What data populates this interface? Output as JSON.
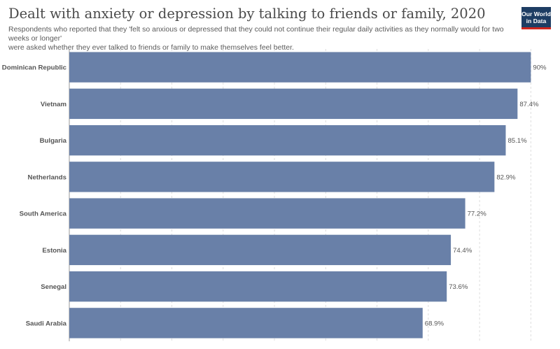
{
  "header": {
    "title": "Dealt with anxiety or depression by talking to friends or family, 2020",
    "subtitle_line1": "Respondents who reported that they 'felt so anxious or depressed that they could not continue their regular daily activities as they normally would for two weeks or longer'",
    "subtitle_line2": "were asked whether they ever talked to friends or family to make themselves feel better."
  },
  "logo": {
    "line1": "Our World",
    "line2": "in Data",
    "colors": {
      "background": "#1d3d63",
      "accent": "#ce261e"
    }
  },
  "chart_data": {
    "type": "bar",
    "orientation": "horizontal",
    "title": "Dealt with anxiety or depression by talking to friends or family, 2020",
    "categories": [
      "Dominican Republic",
      "Vietnam",
      "Bulgaria",
      "Netherlands",
      "South America",
      "Estonia",
      "Senegal",
      "Saudi Arabia"
    ],
    "values": [
      90,
      87.4,
      85.1,
      82.9,
      77.2,
      74.4,
      73.6,
      68.9
    ],
    "value_labels": [
      "90%",
      "87.4%",
      "85.1%",
      "82.9%",
      "77.2%",
      "74.4%",
      "73.6%",
      "68.9%"
    ],
    "xlim": [
      0,
      95
    ],
    "grid_values": [
      0,
      10,
      20,
      30,
      40,
      50,
      60,
      70,
      80,
      90
    ],
    "grid": true,
    "bar_color": "#6980a8"
  }
}
